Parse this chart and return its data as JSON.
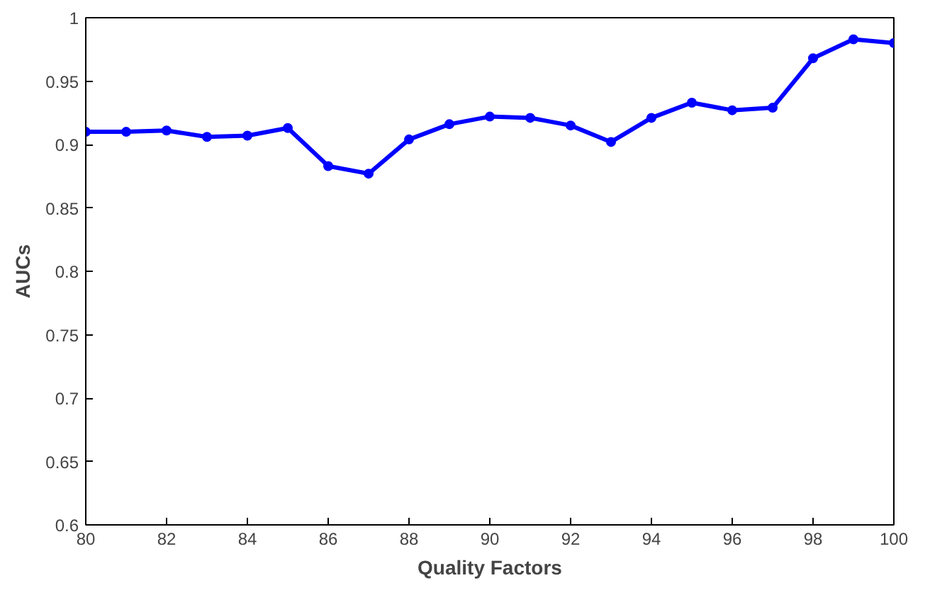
{
  "chart_data": {
    "type": "line",
    "xlabel": "Quality Factors",
    "ylabel": "AUCs",
    "x": [
      80,
      81,
      82,
      83,
      84,
      85,
      86,
      87,
      88,
      89,
      90,
      91,
      92,
      93,
      94,
      95,
      96,
      97,
      98,
      99,
      100
    ],
    "series": [
      {
        "color": "#0000ff",
        "values": [
          0.91,
          0.91,
          0.911,
          0.906,
          0.907,
          0.913,
          0.883,
          0.877,
          0.904,
          0.916,
          0.922,
          0.921,
          0.915,
          0.902,
          0.921,
          0.933,
          0.927,
          0.929,
          0.968,
          0.983,
          0.98
        ]
      }
    ],
    "xlim": [
      80,
      100
    ],
    "xticks": [
      80,
      82,
      84,
      86,
      88,
      90,
      92,
      94,
      96,
      98,
      100
    ],
    "ylim": [
      0.6,
      1
    ],
    "yticks": [
      0.6,
      0.65,
      0.7,
      0.75,
      0.8,
      0.85,
      0.9,
      0.95,
      1
    ],
    "marker": "circle",
    "line_style": "solid"
  }
}
